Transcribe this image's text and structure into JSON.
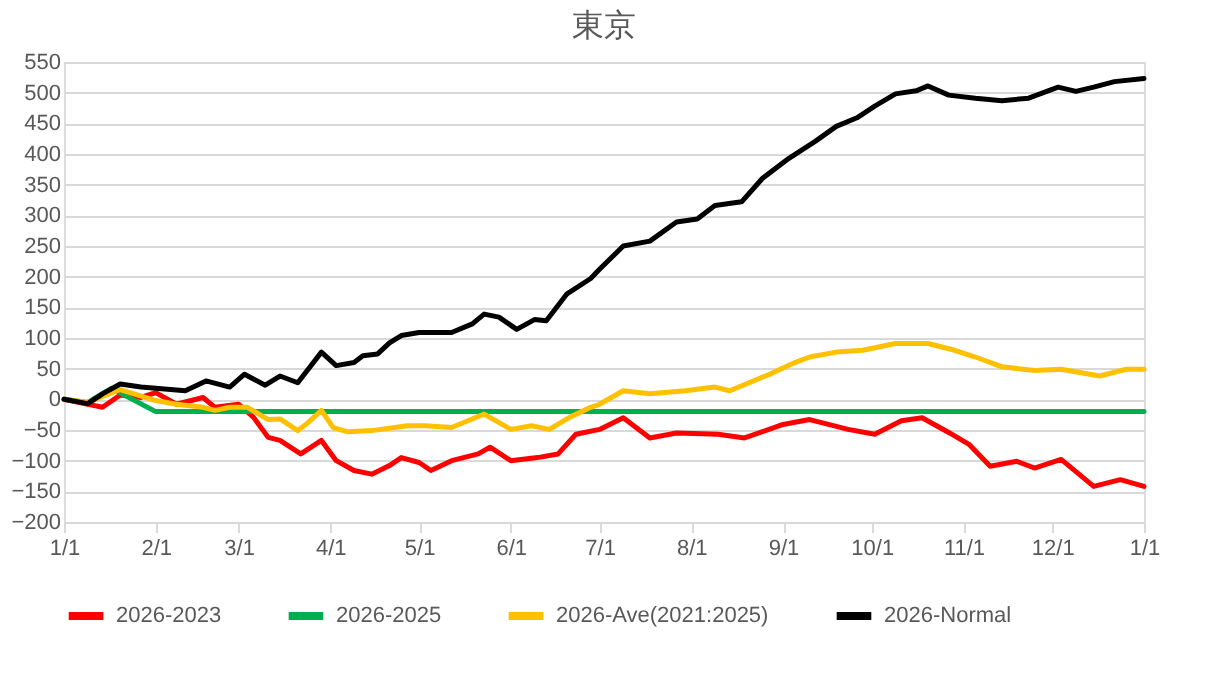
{
  "chart_data": {
    "type": "line",
    "title": "東京",
    "xlim": [
      "2026-01-01",
      "2027-01-01"
    ],
    "xticks": [
      {
        "value": "2026-01-01",
        "label": "1/1"
      },
      {
        "value": "2026-02-01",
        "label": "2/1"
      },
      {
        "value": "2026-03-01",
        "label": "3/1"
      },
      {
        "value": "2026-04-01",
        "label": "4/1"
      },
      {
        "value": "2026-05-01",
        "label": "5/1"
      },
      {
        "value": "2026-06-01",
        "label": "6/1"
      },
      {
        "value": "2026-07-01",
        "label": "7/1"
      },
      {
        "value": "2026-08-01",
        "label": "8/1"
      },
      {
        "value": "2026-09-01",
        "label": "9/1"
      },
      {
        "value": "2026-10-01",
        "label": "10/1"
      },
      {
        "value": "2026-11-01",
        "label": "11/1"
      },
      {
        "value": "2026-12-01",
        "label": "12/1"
      },
      {
        "value": "2027-01-01",
        "label": "1/1"
      }
    ],
    "ylim": [
      -200,
      550
    ],
    "yticks": [
      -200,
      -150,
      -100,
      -50,
      0,
      50,
      100,
      150,
      200,
      250,
      300,
      350,
      400,
      450,
      500,
      550
    ],
    "grid": "y",
    "legend": "bottom",
    "marker": "none",
    "line_style": "solid",
    "series": [
      {
        "name": "2026-2023",
        "color": "#ff0000",
        "x": [
          "2026-01-01",
          "2026-01-14",
          "2026-01-20",
          "2026-01-27",
          "2026-02-01",
          "2026-02-08",
          "2026-02-17",
          "2026-02-21",
          "2026-03-01",
          "2026-03-06",
          "2026-03-11",
          "2026-03-15",
          "2026-03-22",
          "2026-03-29",
          "2026-04-03",
          "2026-04-09",
          "2026-04-15",
          "2026-04-21",
          "2026-04-25",
          "2026-05-01",
          "2026-05-05",
          "2026-05-12",
          "2026-05-21",
          "2026-05-25",
          "2026-06-01",
          "2026-06-10",
          "2026-06-17",
          "2026-06-23",
          "2026-07-01",
          "2026-07-09",
          "2026-07-18",
          "2026-07-27",
          "2026-08-10",
          "2026-08-19",
          "2026-09-01",
          "2026-09-10",
          "2026-09-23",
          "2026-10-02",
          "2026-10-11",
          "2026-10-18",
          "2026-10-27",
          "2026-11-03",
          "2026-11-10",
          "2026-11-19",
          "2026-11-25",
          "2026-12-04",
          "2026-12-15",
          "2026-12-24",
          "2027-01-01"
        ],
        "values": [
          0,
          -13,
          7,
          3,
          11,
          -8,
          3,
          -13,
          -8,
          -29,
          -62,
          -67,
          -89,
          -67,
          -100,
          -116,
          -122,
          -108,
          -95,
          -103,
          -116,
          -100,
          -89,
          -78,
          -100,
          -95,
          -89,
          -57,
          -49,
          -30,
          -63,
          -55,
          -57,
          -63,
          -41,
          -33,
          -49,
          -57,
          -35,
          -30,
          -54,
          -74,
          -109,
          -101,
          -112,
          -98,
          -142,
          -131,
          -142
        ]
      },
      {
        "name": "2026-2025",
        "color": "#00b050",
        "x": [
          "2026-01-01",
          "2026-01-09",
          "2026-01-17",
          "2026-02-01",
          "2027-01-01"
        ],
        "values": [
          0,
          -5,
          18,
          -20,
          -20
        ]
      },
      {
        "name": "2026-Ave(2021:2025)",
        "color": "#ffc000",
        "x": [
          "2026-01-01",
          "2026-01-09",
          "2026-01-20",
          "2026-02-01",
          "2026-02-08",
          "2026-02-17",
          "2026-02-21",
          "2026-02-26",
          "2026-03-04",
          "2026-03-11",
          "2026-03-15",
          "2026-03-21",
          "2026-03-24",
          "2026-03-29",
          "2026-04-02",
          "2026-04-07",
          "2026-04-15",
          "2026-04-27",
          "2026-05-03",
          "2026-05-12",
          "2026-05-23",
          "2026-06-01",
          "2026-06-08",
          "2026-06-14",
          "2026-06-21",
          "2026-06-28",
          "2026-07-01",
          "2026-07-09",
          "2026-07-18",
          "2026-07-30",
          "2026-08-09",
          "2026-08-14",
          "2026-08-28",
          "2026-09-05",
          "2026-09-10",
          "2026-09-19",
          "2026-09-28",
          "2026-10-09",
          "2026-10-20",
          "2026-10-29",
          "2026-11-05",
          "2026-11-14",
          "2026-11-25",
          "2026-12-04",
          "2026-12-17",
          "2026-12-26",
          "2027-01-01"
        ],
        "values": [
          0,
          -5,
          16,
          -2,
          -8,
          -13,
          -18,
          -13,
          -13,
          -33,
          -32,
          -51,
          -40,
          -18,
          -46,
          -53,
          -51,
          -43,
          -43,
          -46,
          -24,
          -49,
          -43,
          -49,
          -29,
          -13,
          -8,
          14,
          9,
          14,
          20,
          14,
          42,
          60,
          69,
          77,
          80,
          91,
          91,
          80,
          69,
          53,
          47,
          49,
          38,
          49,
          49
        ]
      },
      {
        "name": "2026-Normal",
        "color": "#000000",
        "x": [
          "2026-01-01",
          "2026-01-09",
          "2026-01-14",
          "2026-01-20",
          "2026-01-27",
          "2026-02-04",
          "2026-02-11",
          "2026-02-18",
          "2026-02-26",
          "2026-03-03",
          "2026-03-10",
          "2026-03-15",
          "2026-03-21",
          "2026-03-29",
          "2026-04-03",
          "2026-04-09",
          "2026-04-12",
          "2026-04-17",
          "2026-04-21",
          "2026-04-25",
          "2026-05-01",
          "2026-05-12",
          "2026-05-19",
          "2026-05-23",
          "2026-05-28",
          "2026-06-03",
          "2026-06-09",
          "2026-06-13",
          "2026-06-20",
          "2026-06-28",
          "2026-07-01",
          "2026-07-09",
          "2026-07-18",
          "2026-07-27",
          "2026-08-03",
          "2026-08-09",
          "2026-08-18",
          "2026-08-25",
          "2026-09-03",
          "2026-09-12",
          "2026-09-19",
          "2026-09-26",
          "2026-10-02",
          "2026-10-09",
          "2026-10-16",
          "2026-10-20",
          "2026-10-27",
          "2026-11-05",
          "2026-11-14",
          "2026-11-23",
          "2026-12-03",
          "2026-12-09",
          "2026-12-15",
          "2026-12-22",
          "2027-01-01"
        ],
        "values": [
          0,
          -7,
          9,
          25,
          20,
          17,
          14,
          30,
          20,
          41,
          23,
          38,
          27,
          77,
          55,
          60,
          71,
          74,
          92,
          104,
          109,
          109,
          123,
          139,
          134,
          114,
          130,
          128,
          172,
          197,
          212,
          250,
          258,
          289,
          294,
          316,
          322,
          360,
          393,
          421,
          445,
          459,
          478,
          498,
          503,
          511,
          496,
          491,
          487,
          491,
          509,
          502,
          509,
          518,
          523
        ]
      }
    ]
  }
}
